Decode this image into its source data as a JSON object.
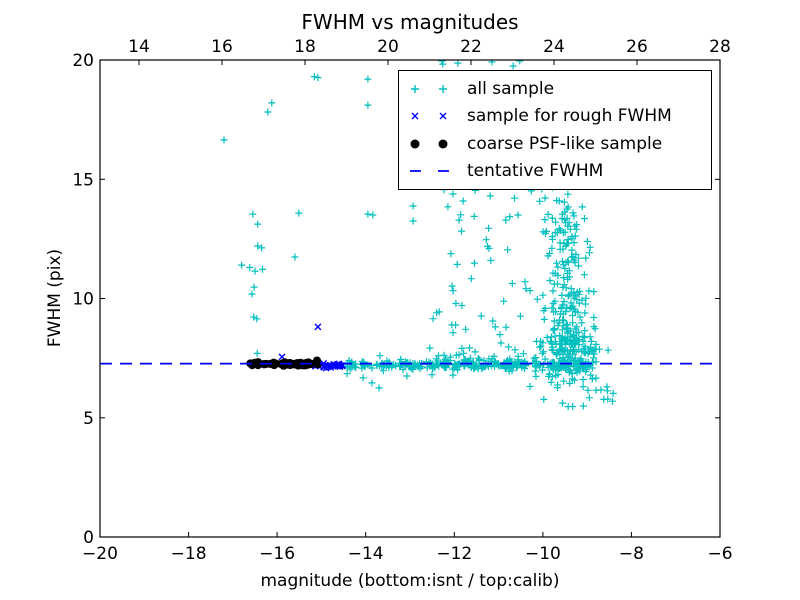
{
  "chart_data": {
    "type": "scatter",
    "title": "FWHM vs magnitudes",
    "xlabel": "magnitude (bottom:isnt / top:calib)",
    "ylabel": "FWHM (pix)",
    "grid": false,
    "x_bottom": {
      "range": [
        -20,
        -6
      ],
      "ticks": [
        {
          "v": -20,
          "label": "−20"
        },
        {
          "v": -18,
          "label": "−18"
        },
        {
          "v": -16,
          "label": "−16"
        },
        {
          "v": -14,
          "label": "−14"
        },
        {
          "v": -12,
          "label": "−12"
        },
        {
          "v": -10,
          "label": "−10"
        },
        {
          "v": -8,
          "label": "−8"
        },
        {
          "v": -6,
          "label": "−6"
        }
      ]
    },
    "x_top": {
      "range": [
        13.06,
        28
      ],
      "ticks": [
        {
          "v": 14,
          "label": "14"
        },
        {
          "v": 16,
          "label": "16"
        },
        {
          "v": 18,
          "label": "18"
        },
        {
          "v": 20,
          "label": "20"
        },
        {
          "v": 22,
          "label": "22"
        },
        {
          "v": 24,
          "label": "24"
        },
        {
          "v": 26,
          "label": "26"
        },
        {
          "v": 28,
          "label": "28"
        }
      ]
    },
    "y": {
      "range": [
        0,
        20
      ],
      "ticks": [
        {
          "v": 0,
          "label": "0"
        },
        {
          "v": 5,
          "label": "5"
        },
        {
          "v": 10,
          "label": "10"
        },
        {
          "v": 15,
          "label": "15"
        },
        {
          "v": 20,
          "label": "20"
        }
      ]
    },
    "tentative_fwhm": 7.27,
    "line": {
      "name": "tentative FWHM",
      "color": "#0000ff",
      "y": 7.27,
      "dash": [
        12,
        8
      ],
      "width": 1.8
    },
    "legend": {
      "position": "upper right",
      "items": [
        {
          "label": "all sample",
          "marker": "plus",
          "color": "#00bfbf"
        },
        {
          "label": "sample for rough FWHM",
          "marker": "x",
          "color": "#0000ff"
        },
        {
          "label": "coarse PSF-like sample",
          "marker": "dot",
          "color": "#000000"
        },
        {
          "label": "tentative FWHM",
          "marker": "dash",
          "color": "#0000ff"
        }
      ]
    },
    "series": {
      "all_sample": {
        "name": "all sample",
        "marker": "plus",
        "color": "#00bfbf",
        "points": [
          [
            -15.16,
            19.3
          ],
          [
            -15.08,
            19.26
          ],
          [
            -13.95,
            19.2
          ],
          [
            -13.95,
            18.11
          ],
          [
            -16.12,
            18.2
          ],
          [
            -16.21,
            17.82
          ],
          [
            -17.2,
            16.65
          ],
          [
            -16.55,
            13.54
          ],
          [
            -16.44,
            13.12
          ],
          [
            -15.51,
            13.58
          ],
          [
            -13.95,
            13.54
          ],
          [
            -13.84,
            13.5
          ],
          [
            -12.93,
            13.88
          ],
          [
            -12.93,
            13.25
          ],
          [
            -16.44,
            12.2
          ],
          [
            -16.35,
            12.12
          ],
          [
            -15.6,
            11.74
          ],
          [
            -16.8,
            11.4
          ],
          [
            -16.62,
            11.3
          ],
          [
            -16.5,
            11.15
          ],
          [
            -16.33,
            11.22
          ],
          [
            -16.52,
            10.48
          ],
          [
            -16.57,
            10.19
          ],
          [
            -16.53,
            9.22
          ],
          [
            -16.46,
            9.15
          ],
          [
            -12.28,
            19.96
          ],
          [
            -12.26,
            19.83
          ],
          [
            -11.92,
            19.87
          ],
          [
            -11.15,
            19.92
          ],
          [
            -10.67,
            19.75
          ],
          [
            -10.52,
            19.96
          ],
          [
            -12.03,
            14.38
          ],
          [
            -11.8,
            14.09
          ],
          [
            -11.19,
            14.3
          ],
          [
            -10.26,
            14.51
          ],
          [
            -9.95,
            14.21
          ],
          [
            -12.55,
            7.92
          ],
          [
            -11.53,
            7.76
          ],
          [
            -10.63,
            7.85
          ],
          [
            -13.68,
            7.6
          ],
          [
            -13.86,
            6.46
          ],
          [
            -13.7,
            6.25
          ],
          [
            -14.06,
            6.67
          ],
          [
            -13.07,
            6.75
          ],
          [
            -14.42,
            6.85
          ],
          [
            -16.45,
            7.7
          ]
        ],
        "clusters": [
          {
            "n": 265,
            "seed": 27,
            "x": {
              "dist": "uniform",
              "min": -14.45,
              "max": -8.85
            },
            "y": {
              "dist": "normal",
              "mean": 7.22,
              "sd": 0.09,
              "min": 6.92,
              "max": 7.52
            }
          },
          {
            "n": 28,
            "seed": 28,
            "x": {
              "dist": "uniform",
              "min": -11.6,
              "max": -8.9
            },
            "y": {
              "dist": "normal",
              "mean": 7.25,
              "sd": 0.2,
              "min": 6.6,
              "max": 7.9
            }
          },
          {
            "n": 150,
            "seed": 21,
            "x": {
              "dist": "normal",
              "mean": -9.45,
              "sd": 0.33,
              "min": -10.4,
              "max": -8.8
            },
            "y": {
              "dist": "normal",
              "mean": 7.7,
              "sd": 0.75,
              "min": 6.15,
              "max": 9.6
            }
          },
          {
            "n": 115,
            "seed": 22,
            "x": {
              "dist": "normal",
              "mean": -9.5,
              "sd": 0.3,
              "min": -10.4,
              "max": -8.85
            },
            "y": {
              "dist": "normal",
              "mean": 9.9,
              "sd": 1.15,
              "min": 8.2,
              "max": 12.6
            }
          },
          {
            "n": 60,
            "seed": 23,
            "x": {
              "dist": "normal",
              "mean": -9.55,
              "sd": 0.28,
              "min": -10.3,
              "max": -8.9
            },
            "y": {
              "dist": "normal",
              "mean": 12.7,
              "sd": 0.95,
              "min": 10.8,
              "max": 14.7
            }
          },
          {
            "n": 55,
            "seed": 24,
            "x": {
              "dist": "uniform",
              "min": -12.55,
              "max": -10.35
            },
            "y": {
              "dist": "normal",
              "mean": 7.35,
              "sd": 0.3,
              "min": 6.7,
              "max": 8.3
            }
          },
          {
            "n": 38,
            "seed": 25,
            "x": {
              "dist": "uniform",
              "min": -12.6,
              "max": -10.3
            },
            "y": {
              "dist": "uniform",
              "min": 8.3,
              "max": 13.9
            }
          },
          {
            "n": 26,
            "seed": 26,
            "x": {
              "dist": "uniform",
              "min": -12.4,
              "max": -8.95
            },
            "y": {
              "dist": "uniform",
              "min": 14.2,
              "max": 19.3
            }
          },
          {
            "n": 9,
            "seed": 29,
            "x": {
              "dist": "uniform",
              "min": -9.1,
              "max": -8.48
            },
            "y": {
              "dist": "normal",
              "mean": 7.83,
              "sd": 0.06,
              "min": 7.7,
              "max": 7.95
            }
          },
          {
            "n": 16,
            "seed": 30,
            "x": {
              "dist": "uniform",
              "min": -10.3,
              "max": -8.27
            },
            "y": {
              "dist": "uniform",
              "min": 5.25,
              "max": 6.45
            }
          }
        ]
      },
      "rough_fwhm": {
        "name": "sample for rough FWHM",
        "marker": "x",
        "color": "#0000ff",
        "points": [
          [
            -15.08,
            8.81
          ],
          [
            -15.89,
            7.55
          ]
        ],
        "clusters": [
          {
            "n": 34,
            "seed": 31,
            "x": {
              "dist": "uniform",
              "min": -15.17,
              "max": -14.5
            },
            "y": {
              "dist": "normal",
              "mean": 7.2,
              "sd": 0.05,
              "min": 7.05,
              "max": 7.35
            }
          }
        ]
      },
      "coarse_psf": {
        "name": "coarse PSF-like sample",
        "marker": "dot",
        "color": "#000000",
        "points": [],
        "clusters": [
          {
            "n": 60,
            "seed": 32,
            "x": {
              "dist": "uniform",
              "min": -16.62,
              "max": -15.08
            },
            "y": {
              "dist": "normal",
              "mean": 7.27,
              "sd": 0.04,
              "min": 7.15,
              "max": 7.4
            }
          }
        ]
      }
    }
  }
}
